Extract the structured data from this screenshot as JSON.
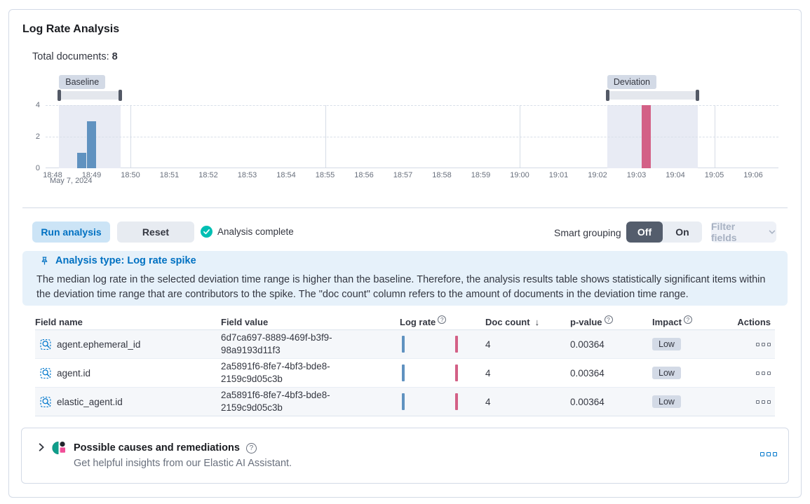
{
  "header": {
    "title": "Log Rate Analysis",
    "total_docs_label": "Total documents:",
    "total_docs_value": "8"
  },
  "chart": {
    "baseline_label": "Baseline",
    "deviation_label": "Deviation",
    "date_label": "May 7, 2024"
  },
  "chart_data": {
    "type": "bar",
    "ylabel": "",
    "ylim": [
      0,
      4
    ],
    "y_ticks": [
      0,
      2,
      4
    ],
    "x_ticks": [
      "18:48",
      "18:49",
      "18:50",
      "18:51",
      "18:52",
      "18:53",
      "18:54",
      "18:55",
      "18:56",
      "18:57",
      "18:58",
      "18:59",
      "19:00",
      "19:01",
      "19:02",
      "19:03",
      "19:04",
      "19:05",
      "19:06"
    ],
    "series": [
      {
        "name": "baseline",
        "color": "#6092c0",
        "bars": [
          {
            "time": "18:48:45",
            "value": 1
          },
          {
            "time": "18:49:00",
            "value": 3
          }
        ]
      },
      {
        "name": "deviation",
        "color": "#d36086",
        "bars": [
          {
            "time": "19:03:15",
            "value": 4
          }
        ]
      }
    ],
    "brushes": {
      "baseline": {
        "from": "18:48:10",
        "to": "18:49:45"
      },
      "deviation": {
        "from": "19:02:15",
        "to": "19:04:35"
      }
    }
  },
  "toolbar": {
    "run_analysis": "Run analysis",
    "reset": "Reset",
    "status": "Analysis complete",
    "smart_grouping_label": "Smart grouping",
    "off": "Off",
    "on": "On",
    "filter_fields": "Filter fields"
  },
  "callout": {
    "title": "Analysis type: Log rate spike",
    "body": "The median log rate in the selected deviation time range is higher than the baseline. Therefore, the analysis results table shows statistically significant items within the deviation time range that are contributors to the spike. The \"doc count\" column refers to the amount of documents in the deviation time range."
  },
  "table": {
    "headers": {
      "field_name": "Field name",
      "field_value": "Field value",
      "log_rate": "Log rate",
      "doc_count": "Doc count",
      "p_value": "p-value",
      "impact": "Impact",
      "actions": "Actions"
    },
    "rows": [
      {
        "field_name": "agent.ephemeral_id",
        "field_value": "6d7ca697-8889-469f-b3f9-98a9193d11f3",
        "doc_count": "4",
        "p_value": "0.00364",
        "impact": "Low"
      },
      {
        "field_name": "agent.id",
        "field_value": "2a5891f6-8fe7-4bf3-bde8-2159c9d05c3b",
        "doc_count": "4",
        "p_value": "0.00364",
        "impact": "Low"
      },
      {
        "field_name": "elastic_agent.id",
        "field_value": "2a5891f6-8fe7-4bf3-bde8-2159c9d05c3b",
        "doc_count": "4",
        "p_value": "0.00364",
        "impact": "Low"
      }
    ]
  },
  "footer": {
    "title": "Possible causes and remediations",
    "subtitle": "Get helpful insights from our Elastic AI Assistant."
  },
  "colors": {
    "accent_blue": "#0077cc",
    "baseline_bar": "#6092c0",
    "deviation_bar": "#d36086",
    "success_teal": "#00bfb3"
  }
}
